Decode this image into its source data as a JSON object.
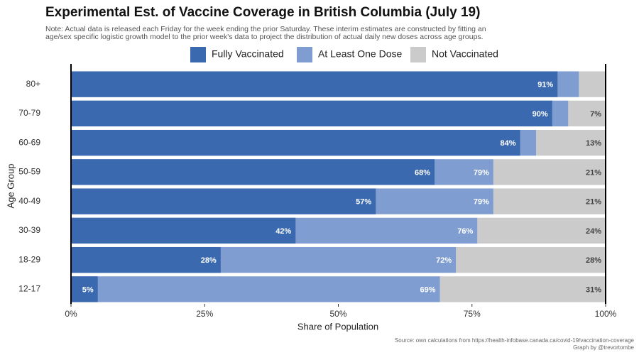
{
  "chart_data": {
    "type": "bar",
    "orientation": "horizontal",
    "title": "Experimental Est. of Vaccine Coverage in British Columbia (July 19)",
    "subtitle": [
      "Note: Actual data is released each Friday for the week ending the prior Saturday. These interim estimates are constructed by fitting an",
      "age/sex specific logistic growth model to the prior week's data to project the distribution of actual daily new doses across age groups."
    ],
    "x_label": "Share of Population",
    "y_label": "Age Group",
    "source": [
      "Source: own calculations from https://health-infobase.canada.ca/covid-19/vaccination-coverage",
      "Graph by @trevortombe"
    ],
    "categories": [
      "80+",
      "70-79",
      "60-69",
      "50-59",
      "40-49",
      "30-39",
      "18-29",
      "12-17"
    ],
    "series": [
      {
        "name": "Fully Vaccinated",
        "color": "#3a69b0",
        "anchor": "start",
        "values": [
          91,
          90,
          84,
          68,
          57,
          42,
          28,
          5
        ],
        "value_labels": [
          "91%",
          "90%",
          "84%",
          "68%",
          "57%",
          "42%",
          "28%",
          "5%"
        ]
      },
      {
        "name": "At Least One Dose",
        "color": "#7f9dd0",
        "anchor": "start",
        "values": [
          95,
          93,
          87,
          79,
          79,
          76,
          72,
          69
        ],
        "value_labels": [
          null,
          null,
          null,
          "79%",
          "79%",
          "76%",
          "72%",
          "69%"
        ]
      },
      {
        "name": "Not Vaccinated",
        "color": "#cbcbcb",
        "anchor": "end",
        "values": [
          5,
          7,
          13,
          21,
          21,
          24,
          28,
          31
        ],
        "value_labels": [
          null,
          "7%",
          "13%",
          "21%",
          "21%",
          "24%",
          "28%",
          "31%"
        ]
      }
    ],
    "xlim": [
      0,
      100
    ],
    "xticks": [
      {
        "value": 0,
        "label": "0%"
      },
      {
        "value": 25,
        "label": "25%"
      },
      {
        "value": 50,
        "label": "50%"
      },
      {
        "value": 75,
        "label": "75%"
      },
      {
        "value": 100,
        "label": "100%"
      }
    ],
    "legend": "top"
  }
}
